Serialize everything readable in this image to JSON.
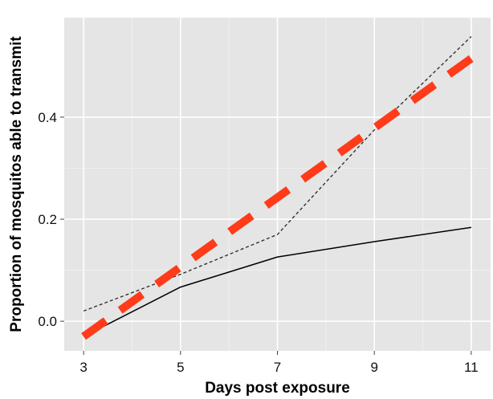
{
  "chart_data": {
    "type": "line",
    "title": "",
    "xlabel": "Days post exposure",
    "ylabel": "Proportion of mosquitos able to transmit",
    "xlim": [
      2.6,
      11.4
    ],
    "ylim": [
      -0.058,
      0.595
    ],
    "x_ticks": [
      3,
      5,
      7,
      9,
      11
    ],
    "x_tick_labels": [
      "3",
      "5",
      "7",
      "9",
      "11"
    ],
    "y_ticks": [
      0.0,
      0.2,
      0.4
    ],
    "y_tick_labels": [
      "0.0",
      "0.2",
      "0.4"
    ],
    "grid": true,
    "legend": "none",
    "series": [
      {
        "style": "solid",
        "color": "#000000",
        "x": [
          3,
          5,
          7,
          9,
          11
        ],
        "y": [
          -0.03,
          0.067,
          0.126,
          0.156,
          0.184
        ]
      },
      {
        "style": "dotted",
        "color": "#333333",
        "x": [
          3,
          5,
          7,
          9,
          11
        ],
        "y": [
          0.02,
          0.092,
          0.17,
          0.375,
          0.558
        ]
      },
      {
        "style": "dashed-thick",
        "color": "#ff3b1a",
        "x": [
          3,
          11
        ],
        "y": [
          -0.03,
          0.515
        ]
      }
    ]
  }
}
